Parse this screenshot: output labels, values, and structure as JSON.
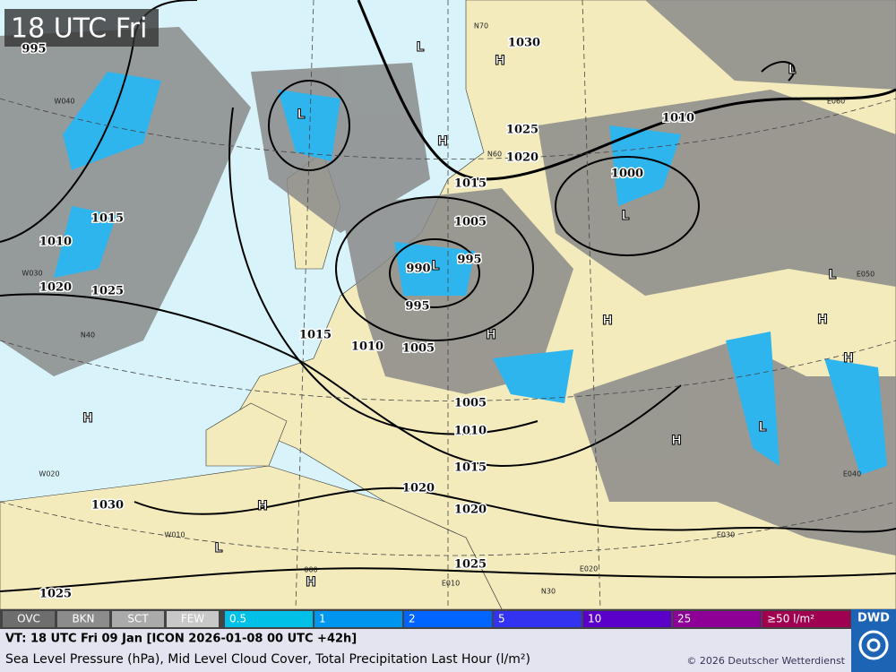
{
  "header": {
    "time_label": "18 UTC Fri"
  },
  "isobar_labels": [
    995,
    1030,
    1025,
    1020,
    1015,
    1005,
    995,
    990,
    995,
    1010,
    1000,
    1015,
    1010,
    1020,
    1025,
    1015,
    1010,
    1005,
    1005,
    1010,
    1015,
    1020,
    1020,
    1030,
    1025,
    1025
  ],
  "pressure_centers": [
    "L",
    "H",
    "L",
    "H",
    "L",
    "L",
    "L",
    "H",
    "H",
    "H",
    "H",
    "H",
    "L",
    "H",
    "H",
    "L",
    "H",
    "L"
  ],
  "grid_labels": [
    "W040",
    "W030",
    "W020",
    "W010",
    "000",
    "E010",
    "E020",
    "E030",
    "E040",
    "E050",
    "E060",
    "N30",
    "N40",
    "N60",
    "N70"
  ],
  "legend": {
    "cloud": [
      {
        "label": "OVC",
        "color": "#6e6e6e"
      },
      {
        "label": "BKN",
        "color": "#8c8c8c"
      },
      {
        "label": "SCT",
        "color": "#aaaaaa"
      },
      {
        "label": "FEW",
        "color": "#c8c8c8"
      }
    ],
    "precipitation": [
      {
        "label": "0.5",
        "color": "#00c0e8"
      },
      {
        "label": "1",
        "color": "#0096f0"
      },
      {
        "label": "2",
        "color": "#0064ff"
      },
      {
        "label": "5",
        "color": "#3232f0"
      },
      {
        "label": "10",
        "color": "#5a00c8"
      },
      {
        "label": "25",
        "color": "#8c0096"
      },
      {
        "label": "≥50 l/m²",
        "color": "#a00050"
      }
    ]
  },
  "footer": {
    "valid_time": "VT: 18 UTC Fri  09 Jan [ICON 2026-01-08 00 UTC +42h]",
    "description": "Sea Level Pressure (hPa), Mid Level Cloud Cover, Total Precipitation Last Hour (l/m²)",
    "copyright": "© 2026 Deutscher Wetterdienst",
    "logo": "DWD"
  }
}
